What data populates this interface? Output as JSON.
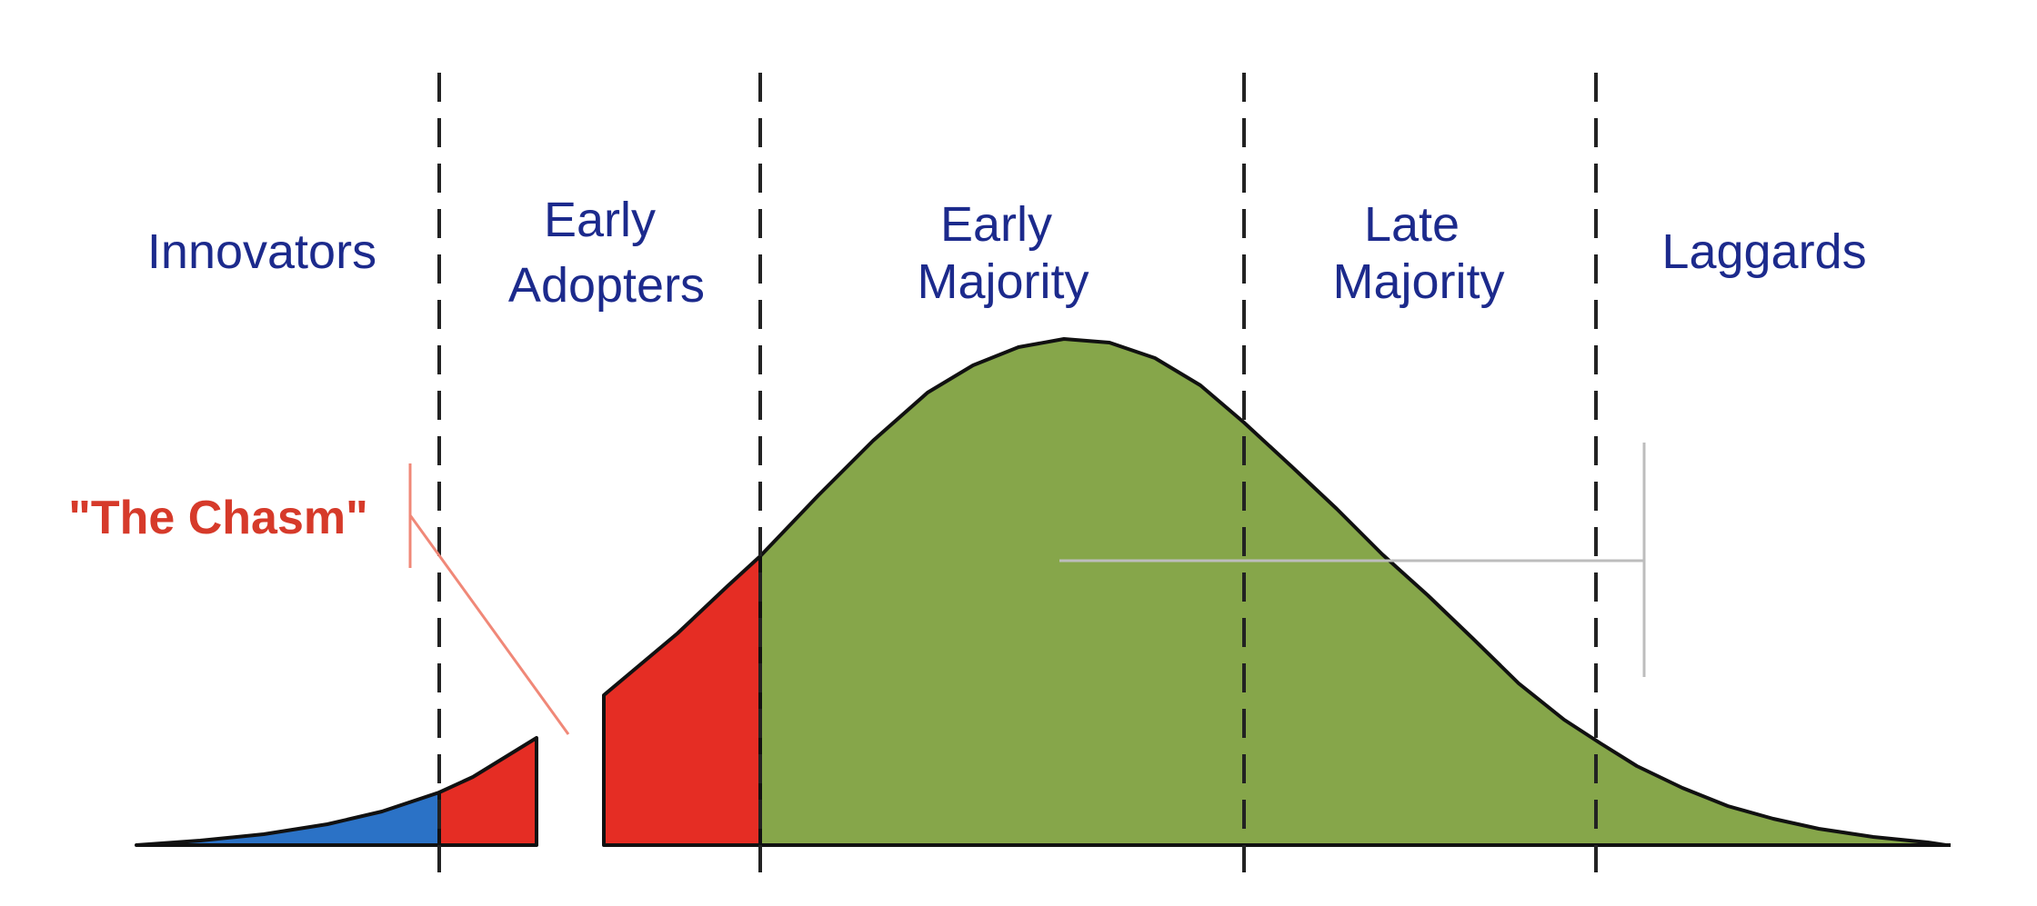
{
  "title": "",
  "colors": {
    "innovators": "#2b72c6",
    "early_adopters": "#e52d24",
    "early_majority": "#86a64a",
    "labels": "#1c2a8c",
    "chasm": "#d63a2a"
  },
  "segments": [
    {
      "id": "innovators",
      "lines": [
        "Innovators"
      ]
    },
    {
      "id": "early-adopters",
      "lines": [
        "Early",
        "Adopters"
      ]
    },
    {
      "id": "early-majority",
      "lines": [
        "Early",
        "Majority"
      ]
    },
    {
      "id": "late-majority",
      "lines": [
        "Late",
        "Majority"
      ]
    },
    {
      "id": "laggards",
      "lines": [
        "Laggards"
      ]
    }
  ],
  "chasm": {
    "label": "\"The Chasm\""
  }
}
